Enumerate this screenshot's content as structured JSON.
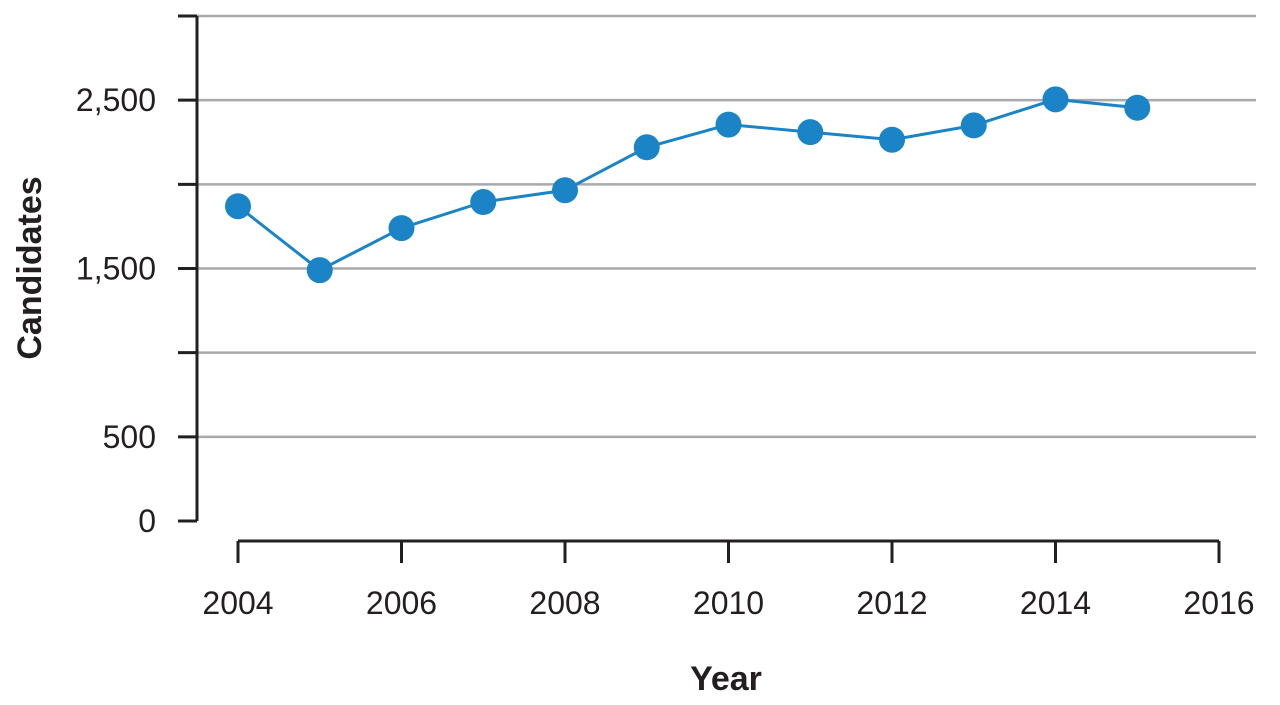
{
  "chart_data": {
    "type": "line",
    "title": "",
    "xlabel": "Year",
    "ylabel": "Candidates",
    "xlim": [
      2004,
      2016
    ],
    "ylim": [
      0,
      3000
    ],
    "x_ticks": [
      2004,
      2006,
      2008,
      2010,
      2012,
      2014,
      2016
    ],
    "x_tick_labels": [
      "2004",
      "2006",
      "2008",
      "2010",
      "2012",
      "2014",
      "2016"
    ],
    "y_gridlines": [
      500,
      1000,
      1500,
      2000,
      2500,
      3000
    ],
    "y_ticks": [
      0,
      500,
      1000,
      1500,
      2000,
      2500,
      3000
    ],
    "y_tick_labels": [
      {
        "value": 0,
        "label": "0"
      },
      {
        "value": 500,
        "label": "500"
      },
      {
        "value": 1500,
        "label": "1,500"
      },
      {
        "value": 2500,
        "label": "2,500"
      }
    ],
    "grid": true,
    "legend": "none",
    "colors": {
      "series": "#1b84c6",
      "grid": "#a7a9ac",
      "axis": "#231f20"
    },
    "series": [
      {
        "x": [
          2004,
          2005,
          2006,
          2007,
          2008,
          2009,
          2010,
          2011,
          2012,
          2013,
          2014,
          2015
        ],
        "values": [
          1870,
          1490,
          1740,
          1895,
          1965,
          2220,
          2355,
          2310,
          2265,
          2350,
          2505,
          2455
        ]
      }
    ]
  }
}
